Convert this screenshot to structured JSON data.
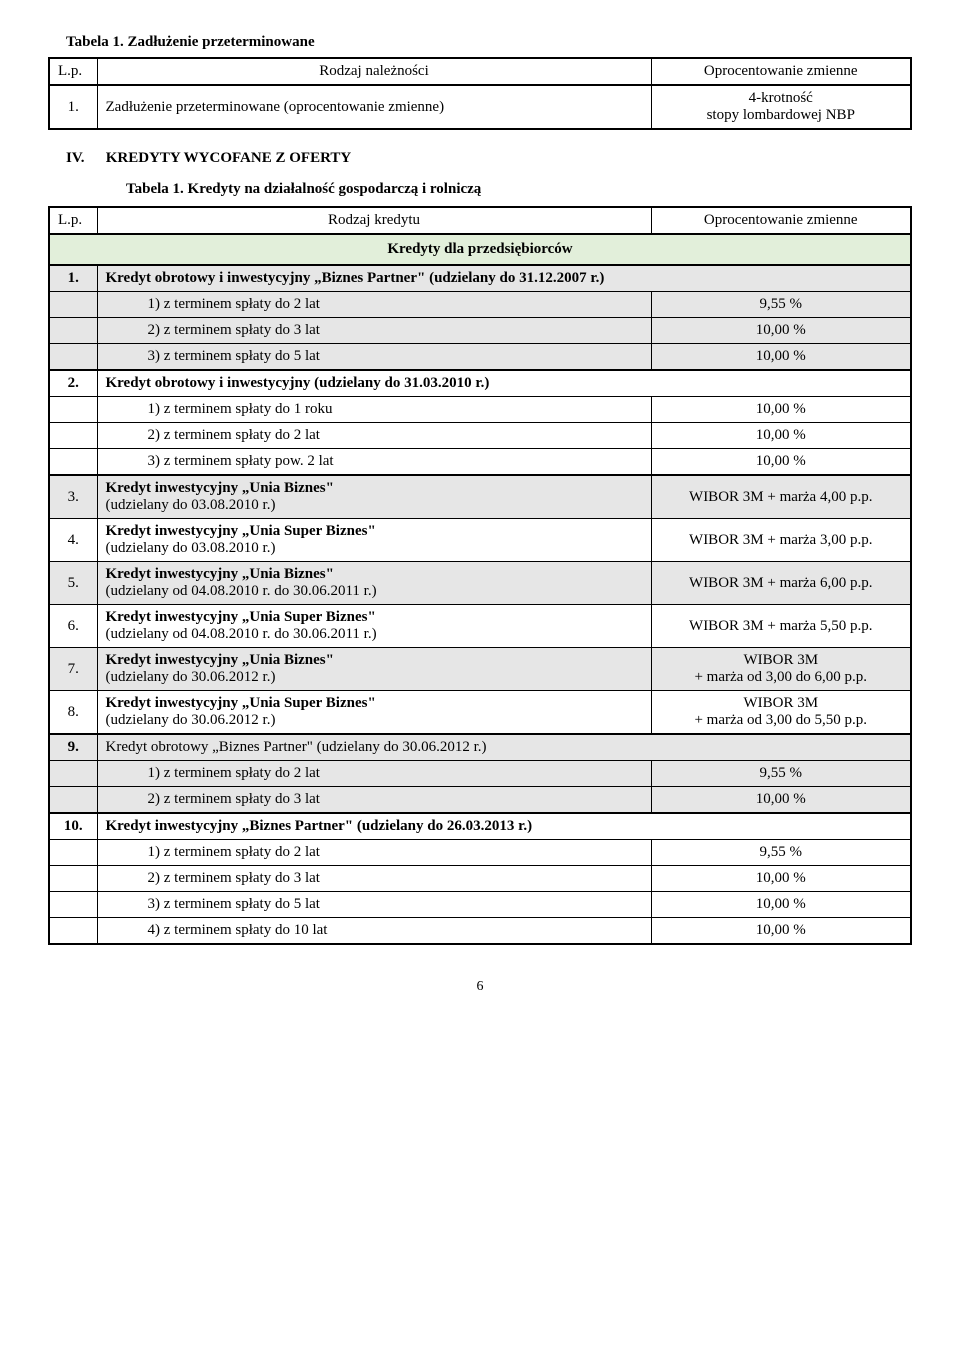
{
  "table1": {
    "caption": "Tabela 1.   Zadłużenie przeterminowane",
    "head_lp": "L.p.",
    "head_mid": "Rodzaj należności",
    "head_rate": "Oprocentowanie zmienne",
    "row_num": "1.",
    "row_desc": "Zadłużenie przeterminowane (oprocentowanie zmienne)",
    "row_rate_l1": "4-krotność",
    "row_rate_l2": "stopy lombardowej NBP"
  },
  "section4": {
    "heading_roman": "IV.",
    "heading": "KREDYTY WYCOFANE Z OFERTY",
    "subcaption": "Tabela 1.   Kredyty na działalność gospodarczą i rolniczą",
    "head_lp": "L.p.",
    "head_mid": "Rodzaj kredytu",
    "head_rate": "Oprocentowanie zmienne",
    "subheader": "Kredyty dla przedsiębiorców",
    "r1": {
      "num": "1.",
      "desc": "Kredyt obrotowy i inwestycyjny „Biznes Partner\" (udzielany do 31.12.2007 r.)",
      "a_desc": "1)  z terminem spłaty do 2 lat",
      "a_rate": "9,55 %",
      "b_desc": "2)  z terminem spłaty do 3 lat",
      "b_rate": "10,00 %",
      "c_desc": "3)  z terminem spłaty do 5 lat",
      "c_rate": "10,00 %"
    },
    "r2": {
      "num": "2.",
      "desc": "Kredyt obrotowy i inwestycyjny (udzielany do 31.03.2010 r.)",
      "a_desc": "1)  z terminem spłaty do 1 roku",
      "a_rate": "10,00 %",
      "b_desc": "2)  z terminem spłaty do 2 lat",
      "b_rate": "10,00 %",
      "c_desc": "3)  z terminem spłaty pow. 2 lat",
      "c_rate": "10,00 %"
    },
    "r3": {
      "num": "3.",
      "desc_l1": "Kredyt inwestycyjny „Unia Biznes\"",
      "desc_l2": "(udzielany do 03.08.2010 r.)",
      "rate": "WIBOR 3M + marża 4,00 p.p."
    },
    "r4": {
      "num": "4.",
      "desc_l1": "Kredyt inwestycyjny „Unia Super Biznes\"",
      "desc_l2": "(udzielany do 03.08.2010 r.)",
      "rate": "WIBOR 3M + marża 3,00 p.p."
    },
    "r5": {
      "num": "5.",
      "desc_l1": "Kredyt inwestycyjny „Unia Biznes\"",
      "desc_l2": "(udzielany od 04.08.2010 r. do 30.06.2011 r.)",
      "rate": "WIBOR 3M + marża 6,00 p.p."
    },
    "r6": {
      "num": "6.",
      "desc_l1": "Kredyt inwestycyjny „Unia Super Biznes\"",
      "desc_l2": "(udzielany od 04.08.2010 r. do 30.06.2011 r.)",
      "rate": "WIBOR 3M + marża 5,50 p.p."
    },
    "r7": {
      "num": "7.",
      "desc_l1": "Kredyt inwestycyjny „Unia Biznes\"",
      "desc_l2": "(udzielany do 30.06.2012 r.)",
      "rate_l1": "WIBOR 3M",
      "rate_l2": "+ marża od 3,00 do 6,00 p.p."
    },
    "r8": {
      "num": "8.",
      "desc_l1": "Kredyt inwestycyjny „Unia Super Biznes\"",
      "desc_l2": "(udzielany do 30.06.2012 r.)",
      "rate_l1": "WIBOR 3M",
      "rate_l2": "+ marża od 3,00 do 5,50 p.p."
    },
    "r9": {
      "num": "9.",
      "desc": "Kredyt obrotowy „Biznes Partner\" (udzielany do 30.06.2012 r.)",
      "a_desc": "1) z terminem spłaty do 2 lat",
      "a_rate": "9,55 %",
      "b_desc": "2) z terminem spłaty do 3 lat",
      "b_rate": "10,00 %"
    },
    "r10": {
      "num": "10.",
      "desc": "Kredyt inwestycyjny „Biznes Partner\" (udzielany do 26.03.2013 r.)",
      "a_desc": "1) z terminem spłaty do 2 lat",
      "a_rate": "9,55 %",
      "b_desc": "2) z terminem spłaty do 3 lat",
      "b_rate": "10,00 %",
      "c_desc": "3) z terminem spłaty do 5 lat",
      "c_rate": "10,00 %",
      "d_desc": "4) z terminem spłaty do 10 lat",
      "d_rate": "10,00 %"
    }
  },
  "pagenum": "6",
  "colors": {
    "shade": "#e6e6e6",
    "green": "#e2efda",
    "border": "#000000",
    "text": "#000000",
    "bg": "#ffffff"
  }
}
